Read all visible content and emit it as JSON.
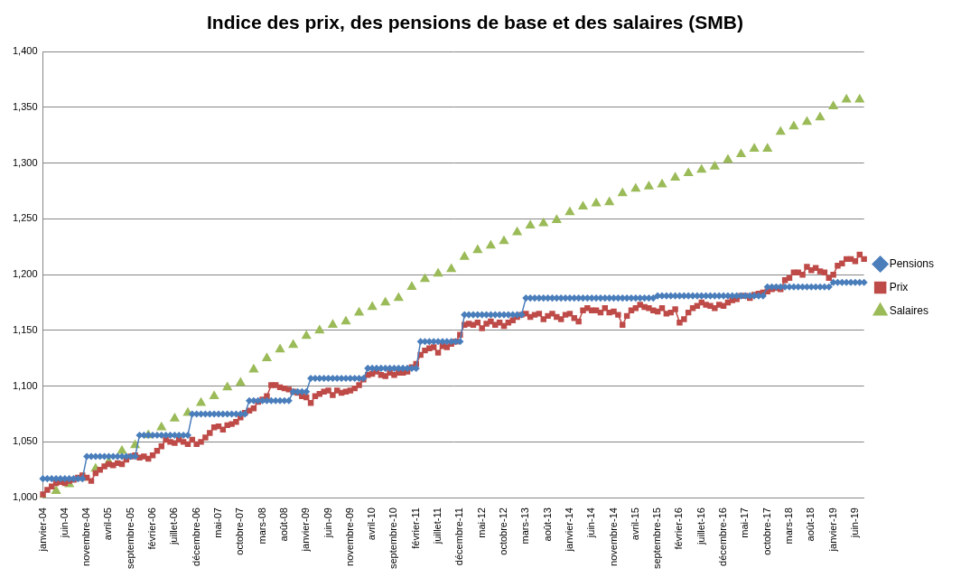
{
  "chart_data": {
    "type": "line",
    "title": "Indice des prix, des pensions de base et des salaires (SMB)",
    "categories": [
      "janvier-04",
      null,
      null,
      null,
      null,
      "juin-04",
      null,
      null,
      null,
      null,
      "novembre-04",
      null,
      null,
      null,
      null,
      "avril-05",
      null,
      null,
      null,
      null,
      "septembre-05",
      null,
      null,
      null,
      null,
      "février-06",
      null,
      null,
      null,
      null,
      "juillet-06",
      null,
      null,
      null,
      null,
      "décembre-06",
      null,
      null,
      null,
      null,
      "mai-07",
      null,
      null,
      null,
      null,
      "octobre-07",
      null,
      null,
      null,
      null,
      "mars-08",
      null,
      null,
      null,
      null,
      "août-08",
      null,
      null,
      null,
      null,
      "janvier-09",
      null,
      null,
      null,
      null,
      "juin-09",
      null,
      null,
      null,
      null,
      "novembre-09",
      null,
      null,
      null,
      null,
      "avril-10",
      null,
      null,
      null,
      null,
      "septembre-10",
      null,
      null,
      null,
      null,
      "février-11",
      null,
      null,
      null,
      null,
      "juillet-11",
      null,
      null,
      null,
      null,
      "décembre-11",
      null,
      null,
      null,
      null,
      "mai-12",
      null,
      null,
      null,
      null,
      "octobre-12",
      null,
      null,
      null,
      null,
      "mars-13",
      null,
      null,
      null,
      null,
      "août-13",
      null,
      null,
      null,
      null,
      "janvier-14",
      null,
      null,
      null,
      null,
      "juin-14",
      null,
      null,
      null,
      null,
      "novembre-14",
      null,
      null,
      null,
      null,
      "avril-15",
      null,
      null,
      null,
      null,
      "septembre-15",
      null,
      null,
      null,
      null,
      "février-16",
      null,
      null,
      null,
      null,
      "juillet-16",
      null,
      null,
      null,
      null,
      "décembre-16",
      null,
      null,
      null,
      null,
      "mai-17",
      null,
      null,
      null,
      null,
      "octobre-17",
      null,
      null,
      null,
      null,
      "mars-18",
      null,
      null,
      null,
      null,
      "août-18",
      null,
      null,
      null,
      null,
      "janvier-19",
      null,
      null,
      null,
      null,
      "juin-19",
      null,
      null
    ],
    "series": [
      {
        "name": "Pensions",
        "color": "#4a7ebb",
        "marker": "diamond",
        "line_style": "solid",
        "values": [
          1.017,
          1.017,
          1.017,
          1.017,
          1.017,
          1.017,
          1.017,
          1.017,
          1.017,
          1.017,
          1.037,
          1.037,
          1.037,
          1.037,
          1.037,
          1.037,
          1.037,
          1.037,
          1.037,
          1.037,
          1.037,
          1.037,
          1.056,
          1.056,
          1.056,
          1.056,
          1.056,
          1.056,
          1.056,
          1.056,
          1.056,
          1.056,
          1.056,
          1.056,
          1.075,
          1.075,
          1.075,
          1.075,
          1.075,
          1.075,
          1.075,
          1.075,
          1.075,
          1.075,
          1.075,
          1.075,
          1.075,
          1.087,
          1.087,
          1.087,
          1.087,
          1.087,
          1.087,
          1.087,
          1.087,
          1.087,
          1.087,
          1.095,
          1.095,
          1.095,
          1.095,
          1.107,
          1.107,
          1.107,
          1.107,
          1.107,
          1.107,
          1.107,
          1.107,
          1.107,
          1.107,
          1.107,
          1.107,
          1.107,
          1.116,
          1.116,
          1.116,
          1.116,
          1.116,
          1.116,
          1.116,
          1.116,
          1.116,
          1.116,
          1.116,
          1.116,
          1.14,
          1.14,
          1.14,
          1.14,
          1.14,
          1.14,
          1.14,
          1.14,
          1.14,
          1.14,
          1.164,
          1.164,
          1.164,
          1.164,
          1.164,
          1.164,
          1.164,
          1.164,
          1.164,
          1.164,
          1.164,
          1.164,
          1.164,
          1.164,
          1.179,
          1.179,
          1.179,
          1.179,
          1.179,
          1.179,
          1.179,
          1.179,
          1.179,
          1.179,
          1.179,
          1.179,
          1.179,
          1.179,
          1.179,
          1.179,
          1.179,
          1.179,
          1.179,
          1.179,
          1.179,
          1.179,
          1.179,
          1.179,
          1.179,
          1.179,
          1.179,
          1.179,
          1.179,
          1.179,
          1.181,
          1.181,
          1.181,
          1.181,
          1.181,
          1.181,
          1.181,
          1.181,
          1.181,
          1.181,
          1.181,
          1.181,
          1.181,
          1.181,
          1.181,
          1.181,
          1.181,
          1.181,
          1.181,
          1.181,
          1.181,
          1.181,
          1.181,
          1.181,
          1.181,
          1.189,
          1.189,
          1.189,
          1.189,
          1.189,
          1.189,
          1.189,
          1.189,
          1.189,
          1.189,
          1.189,
          1.189,
          1.189,
          1.189,
          1.189,
          1.193,
          1.193,
          1.193,
          1.193,
          1.193,
          1.193,
          1.193,
          1.193
        ]
      },
      {
        "name": "Prix",
        "color": "#be4b48",
        "marker": "square",
        "line_style": "solid",
        "values": [
          1.003,
          1.007,
          1.01,
          1.013,
          1.014,
          1.013,
          1.015,
          1.016,
          1.018,
          1.02,
          1.018,
          1.015,
          1.022,
          1.025,
          1.028,
          1.03,
          1.029,
          1.031,
          1.03,
          1.034,
          1.037,
          1.038,
          1.036,
          1.037,
          1.035,
          1.038,
          1.042,
          1.046,
          1.052,
          1.05,
          1.049,
          1.052,
          1.05,
          1.048,
          1.052,
          1.048,
          1.05,
          1.054,
          1.058,
          1.063,
          1.064,
          1.061,
          1.065,
          1.066,
          1.068,
          1.072,
          1.076,
          1.078,
          1.08,
          1.086,
          1.088,
          1.091,
          1.101,
          1.101,
          1.099,
          1.098,
          1.097,
          1.095,
          1.094,
          1.091,
          1.09,
          1.085,
          1.091,
          1.093,
          1.095,
          1.096,
          1.092,
          1.096,
          1.094,
          1.095,
          1.096,
          1.098,
          1.101,
          1.106,
          1.11,
          1.111,
          1.113,
          1.11,
          1.109,
          1.112,
          1.11,
          1.112,
          1.112,
          1.113,
          1.117,
          1.12,
          1.128,
          1.132,
          1.134,
          1.135,
          1.13,
          1.136,
          1.135,
          1.138,
          1.14,
          1.146,
          1.155,
          1.156,
          1.155,
          1.157,
          1.152,
          1.156,
          1.158,
          1.155,
          1.157,
          1.154,
          1.157,
          1.159,
          1.162,
          1.164,
          1.165,
          1.162,
          1.164,
          1.165,
          1.16,
          1.163,
          1.165,
          1.162,
          1.16,
          1.164,
          1.165,
          1.161,
          1.158,
          1.168,
          1.17,
          1.168,
          1.168,
          1.166,
          1.17,
          1.166,
          1.167,
          1.164,
          1.155,
          1.163,
          1.168,
          1.17,
          1.173,
          1.171,
          1.17,
          1.168,
          1.167,
          1.17,
          1.165,
          1.166,
          1.169,
          1.157,
          1.16,
          1.166,
          1.17,
          1.172,
          1.175,
          1.173,
          1.172,
          1.17,
          1.173,
          1.172,
          1.175,
          1.177,
          1.178,
          1.181,
          1.181,
          1.179,
          1.182,
          1.183,
          1.184,
          1.185,
          1.187,
          1.188,
          1.187,
          1.195,
          1.197,
          1.202,
          1.202,
          1.2,
          1.207,
          1.204,
          1.206,
          1.203,
          1.202,
          1.197,
          1.2,
          1.208,
          1.21,
          1.214,
          1.214,
          1.212,
          1.218,
          1.214
        ]
      },
      {
        "name": "Salaires",
        "color": "#9bbb59",
        "marker": "triangle",
        "line_style": "none",
        "values": [
          1.0,
          null,
          null,
          1.006,
          null,
          null,
          1.012,
          null,
          null,
          1.018,
          null,
          null,
          1.026,
          null,
          null,
          1.032,
          null,
          null,
          1.042,
          null,
          null,
          1.047,
          null,
          null,
          1.056,
          null,
          null,
          1.063,
          null,
          null,
          1.071,
          null,
          null,
          1.076,
          null,
          null,
          1.085,
          null,
          null,
          1.091,
          null,
          null,
          1.099,
          null,
          null,
          1.103,
          null,
          null,
          1.115,
          null,
          null,
          1.125,
          null,
          null,
          1.133,
          null,
          null,
          1.137,
          null,
          null,
          1.145,
          null,
          null,
          1.15,
          null,
          null,
          1.155,
          null,
          null,
          1.158,
          null,
          null,
          1.166,
          null,
          null,
          1.171,
          null,
          null,
          1.175,
          null,
          null,
          1.179,
          null,
          null,
          1.189,
          null,
          null,
          1.196,
          null,
          null,
          1.201,
          null,
          null,
          1.205,
          null,
          null,
          1.216,
          null,
          null,
          1.222,
          null,
          null,
          1.226,
          null,
          null,
          1.23,
          null,
          null,
          1.238,
          null,
          null,
          1.244,
          null,
          null,
          1.246,
          null,
          null,
          1.249,
          null,
          null,
          1.256,
          null,
          null,
          1.261,
          null,
          null,
          1.264,
          null,
          null,
          1.265,
          null,
          null,
          1.273,
          null,
          null,
          1.277,
          null,
          null,
          1.279,
          null,
          null,
          1.281,
          null,
          null,
          1.287,
          null,
          null,
          1.291,
          null,
          null,
          1.294,
          null,
          null,
          1.297,
          null,
          null,
          1.303,
          null,
          null,
          1.308,
          null,
          null,
          1.313,
          null,
          null,
          1.313,
          null,
          null,
          1.328,
          null,
          null,
          1.333,
          null,
          null,
          1.337,
          null,
          null,
          1.341,
          null,
          null,
          1.351,
          null,
          null,
          1.357,
          null,
          null,
          1.357,
          null
        ]
      }
    ],
    "ylim": [
      1.0,
      1.4
    ],
    "yticks": [
      {
        "value": 1.0,
        "label": "1,000"
      },
      {
        "value": 1.05,
        "label": "1,050"
      },
      {
        "value": 1.1,
        "label": "1,100"
      },
      {
        "value": 1.15,
        "label": "1,150"
      },
      {
        "value": 1.2,
        "label": "1,200"
      },
      {
        "value": 1.25,
        "label": "1,250"
      },
      {
        "value": 1.3,
        "label": "1,300"
      },
      {
        "value": 1.35,
        "label": "1,350"
      },
      {
        "value": 1.4,
        "label": "1,400"
      }
    ],
    "grid": true,
    "legend": "right"
  }
}
